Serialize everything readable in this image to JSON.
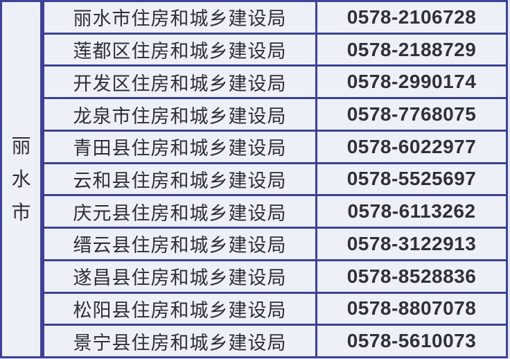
{
  "colors": {
    "table_border": "#3d4294",
    "cell_background": "#eef0f8",
    "page_background": "#e6e8f1",
    "text": "#2e2e34"
  },
  "table": {
    "region": {
      "label": "丽水市",
      "chars": [
        "丽",
        "水",
        "市"
      ]
    },
    "columns": [
      "bureau_name",
      "phone_number"
    ],
    "rows": [
      {
        "bureau": "丽水市住房和城乡建设局",
        "phone": "0578-2106728"
      },
      {
        "bureau": "莲都区住房和城乡建设局",
        "phone": "0578-2188729"
      },
      {
        "bureau": "开发区住房和城乡建设局",
        "phone": "0578-2990174"
      },
      {
        "bureau": "龙泉市住房和城乡建设局",
        "phone": "0578-7768075"
      },
      {
        "bureau": "青田县住房和城乡建设局",
        "phone": "0578-6022977"
      },
      {
        "bureau": "云和县住房和城乡建设局",
        "phone": "0578-5525697"
      },
      {
        "bureau": "庆元县住房和城乡建设局",
        "phone": "0578-6113262"
      },
      {
        "bureau": "缙云县住房和城乡建设局",
        "phone": "0578-3122913"
      },
      {
        "bureau": "遂昌县住房和城乡建设局",
        "phone": "0578-8528836"
      },
      {
        "bureau": "松阳县住房和城乡建设局",
        "phone": "0578-8807078"
      },
      {
        "bureau": "景宁县住房和城乡建设局",
        "phone": "0578-5610073"
      }
    ]
  }
}
